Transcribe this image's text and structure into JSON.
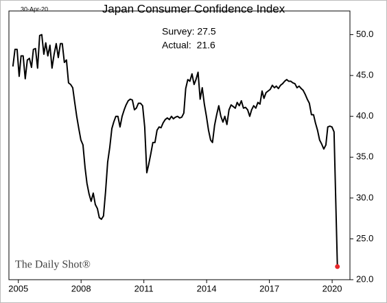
{
  "chart_data": {
    "type": "line",
    "title": "Japan Consumer Confidence Index",
    "date_label": "30-Apr-20",
    "annotations": [
      "Survey: 27.5",
      "Actual:  21.6"
    ],
    "source": "The Daily Shot®",
    "x": [
      2004.74,
      2004.84,
      2004.94,
      2005.04,
      2005.13,
      2005.23,
      2005.33,
      2005.43,
      2005.53,
      2005.63,
      2005.72,
      2005.82,
      2005.92,
      2006.02,
      2006.12,
      2006.22,
      2006.31,
      2006.41,
      2006.51,
      2006.61,
      2006.71,
      2006.81,
      2006.91,
      2007.01,
      2007.1,
      2007.2,
      2007.3,
      2007.4,
      2007.5,
      2007.6,
      2007.69,
      2007.79,
      2007.89,
      2007.99,
      2008.09,
      2008.19,
      2008.28,
      2008.38,
      2008.48,
      2008.58,
      2008.68,
      2008.78,
      2008.87,
      2008.97,
      2009.07,
      2009.17,
      2009.27,
      2009.37,
      2009.47,
      2009.56,
      2009.66,
      2009.76,
      2009.86,
      2009.96,
      2010.06,
      2010.15,
      2010.25,
      2010.35,
      2010.45,
      2010.55,
      2010.64,
      2010.74,
      2010.84,
      2010.94,
      2011.04,
      2011.14,
      2011.23,
      2011.33,
      2011.43,
      2011.53,
      2011.63,
      2011.73,
      2011.82,
      2011.92,
      2012.02,
      2012.12,
      2012.22,
      2012.32,
      2012.41,
      2012.51,
      2012.61,
      2012.71,
      2012.81,
      2012.91,
      2013.0,
      2013.1,
      2013.2,
      2013.3,
      2013.4,
      2013.49,
      2013.59,
      2013.69,
      2013.79,
      2013.89,
      2013.99,
      2014.09,
      2014.19,
      2014.28,
      2014.38,
      2014.48,
      2014.58,
      2014.68,
      2014.78,
      2014.87,
      2014.97,
      2015.07,
      2015.17,
      2015.27,
      2015.37,
      2015.46,
      2015.56,
      2015.66,
      2015.76,
      2015.86,
      2015.96,
      2016.06,
      2016.15,
      2016.25,
      2016.35,
      2016.45,
      2016.55,
      2016.65,
      2016.74,
      2016.84,
      2016.94,
      2017.04,
      2017.14,
      2017.24,
      2017.33,
      2017.43,
      2017.53,
      2017.63,
      2017.73,
      2017.83,
      2017.92,
      2018.02,
      2018.12,
      2018.22,
      2018.32,
      2018.42,
      2018.52,
      2018.61,
      2018.71,
      2018.81,
      2018.91,
      2019.01,
      2019.11,
      2019.2,
      2019.3,
      2019.4,
      2019.5,
      2019.6,
      2019.7,
      2019.79,
      2019.89,
      2019.99,
      2020.09,
      2020.25
    ],
    "series": [
      {
        "color": "#000000",
        "marker_color": "#e8262a",
        "values": [
          46.1,
          48.2,
          48.2,
          44.9,
          47.4,
          47.4,
          44.6,
          46.9,
          47.1,
          46.0,
          48.2,
          48.3,
          45.9,
          49.9,
          50.0,
          47.6,
          49.0,
          47.4,
          48.7,
          45.9,
          47.6,
          48.9,
          47.2,
          48.9,
          48.9,
          46.6,
          46.9,
          44.1,
          43.9,
          43.5,
          41.8,
          40.0,
          38.5,
          37.1,
          36.5,
          33.7,
          31.8,
          30.5,
          29.6,
          30.6,
          29.2,
          28.7,
          27.6,
          27.4,
          27.8,
          30.8,
          34.4,
          36.2,
          38.5,
          39.3,
          40.0,
          40.0,
          38.7,
          40.0,
          40.8,
          41.4,
          41.9,
          42.1,
          42.0,
          40.8,
          41.0,
          41.6,
          41.6,
          41.3,
          38.7,
          33.1,
          34.1,
          35.4,
          36.8,
          36.8,
          38.3,
          38.7,
          38.6,
          39.2,
          39.6,
          39.8,
          39.6,
          40.0,
          39.7,
          39.9,
          40.0,
          39.8,
          39.9,
          40.4,
          43.4,
          44.5,
          44.3,
          45.2,
          43.9,
          44.5,
          45.4,
          42.1,
          43.5,
          41.5,
          40.0,
          38.3,
          37.1,
          36.8,
          38.9,
          40.2,
          41.3,
          40.0,
          39.3,
          40.0,
          39.0,
          40.8,
          41.4,
          41.2,
          41.0,
          41.7,
          41.3,
          41.9,
          41.0,
          41.1,
          40.8,
          40.0,
          40.8,
          41.3,
          41.0,
          41.7,
          41.5,
          43.1,
          42.2,
          42.9,
          43.1,
          43.3,
          43.8,
          43.5,
          43.7,
          43.4,
          43.8,
          44.0,
          44.3,
          44.5,
          44.3,
          44.3,
          44.1,
          44.0,
          43.5,
          43.7,
          43.4,
          43.2,
          42.7,
          42.1,
          41.6,
          40.2,
          40.2,
          39.2,
          38.3,
          37.1,
          36.6,
          36.0,
          36.5,
          38.7,
          38.8,
          38.7,
          38.1,
          21.6
        ]
      }
    ],
    "xlim": [
      2004.55,
      2020.85
    ],
    "xticks": [
      2005,
      2008,
      2011,
      2014,
      2017,
      2020
    ],
    "ylim": [
      20,
      52.9
    ],
    "yticks": [
      {
        "value": 20,
        "label": "20.0"
      },
      {
        "value": 25,
        "label": "25.0"
      },
      {
        "value": 30,
        "label": "30.0"
      },
      {
        "value": 35,
        "label": "35.0"
      },
      {
        "value": 40,
        "label": "40.0"
      },
      {
        "value": 45,
        "label": "45.0"
      },
      {
        "value": 50,
        "label": "50.0"
      }
    ],
    "grid": false
  }
}
